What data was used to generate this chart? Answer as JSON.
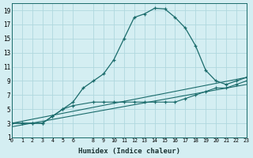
{
  "xlabel": "Humidex (Indice chaleur)",
  "bg_color": "#d4eef2",
  "grid_color": "#b0d8de",
  "line_color": "#1a6b6b",
  "xlim": [
    0,
    23
  ],
  "ylim": [
    1,
    20
  ],
  "xticks": [
    0,
    1,
    2,
    3,
    4,
    5,
    6,
    8,
    9,
    10,
    11,
    12,
    13,
    14,
    15,
    16,
    17,
    18,
    19,
    20,
    21,
    22,
    23
  ],
  "yticks": [
    1,
    3,
    5,
    7,
    9,
    11,
    13,
    15,
    17,
    19
  ],
  "curve1_x": [
    0,
    1,
    2,
    3,
    4,
    5,
    6,
    7,
    8,
    9,
    10,
    11,
    12,
    13,
    14,
    15,
    16,
    17,
    18,
    19,
    20,
    21,
    22,
    23
  ],
  "curve1_y": [
    3,
    3,
    3,
    3,
    4,
    5,
    6,
    8,
    9,
    10,
    12,
    15,
    18,
    18.5,
    19.3,
    19.2,
    18,
    16.5,
    14,
    10.5,
    9,
    8.5,
    9,
    9.5
  ],
  "curve2_x": [
    0,
    1,
    2,
    3,
    4,
    5,
    6,
    8,
    9,
    10,
    11,
    12,
    13,
    14,
    15,
    16,
    17,
    18,
    19,
    20,
    21,
    22,
    23
  ],
  "curve2_y": [
    3,
    3,
    3,
    3,
    4,
    5,
    5.5,
    6,
    6,
    6,
    6,
    6,
    6,
    6,
    6,
    6,
    6.5,
    7,
    7.5,
    8,
    8,
    8.5,
    9
  ],
  "line1_x": [
    0,
    23
  ],
  "line1_y": [
    3,
    9.5
  ],
  "line2_x": [
    0,
    23
  ],
  "line2_y": [
    2.5,
    8.5
  ]
}
